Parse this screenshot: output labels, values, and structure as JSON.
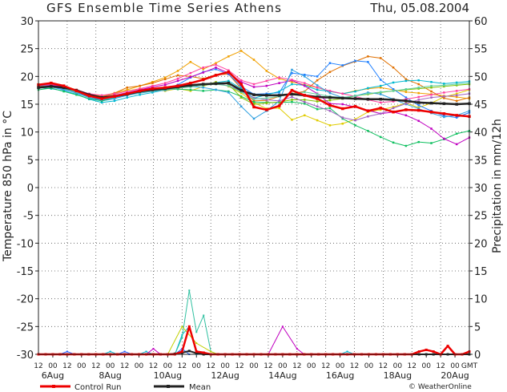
{
  "chart_data": {
    "type": "line",
    "title": "GFS Ensemble Time Series Athens",
    "date": "Thu, 05.08.2004",
    "ylabel": "Temperature 850 hPa in °C",
    "y2label": "Precipitation in mm/12h",
    "ylim": [
      -30,
      30
    ],
    "y2lim": [
      0,
      60
    ],
    "yticks": [
      30,
      25,
      20,
      15,
      10,
      5,
      0,
      -5,
      -10,
      -15,
      -20,
      -25,
      -30
    ],
    "y2ticks": [
      60,
      55,
      50,
      45,
      40,
      35,
      30,
      25,
      20,
      15,
      10,
      5,
      0
    ],
    "hour_labels": [
      "12",
      "00",
      "12",
      "00",
      "12",
      "00",
      "12",
      "00",
      "12",
      "00",
      "12",
      "00",
      "12",
      "00",
      "12",
      "00",
      "12",
      "00",
      "12",
      "00",
      "12",
      "00",
      "12",
      "00",
      "12",
      "00",
      "12",
      "00",
      "12",
      "00",
      "GMT"
    ],
    "date_labels": [
      "6Aug",
      "8Aug",
      "10Aug",
      "12Aug",
      "14Aug",
      "16Aug",
      "18Aug",
      "20Aug"
    ],
    "grid": true,
    "legend": [
      {
        "name": "Control Run",
        "color": "#ee0000"
      },
      {
        "name": "Mean",
        "color": "#222222"
      }
    ],
    "copyright": "© WeatherOnline",
    "x_steps": 30,
    "mean_temp": [
      18.0,
      18.2,
      18.0,
      17.5,
      16.7,
      16.2,
      16.4,
      16.8,
      17.3,
      17.6,
      17.8,
      18.1,
      18.4,
      18.6,
      18.7,
      18.8,
      17.5,
      16.7,
      16.6,
      16.6,
      16.8,
      16.6,
      16.3,
      16.2,
      16.1,
      16.0,
      15.9,
      15.9,
      15.8,
      15.6,
      15.3,
      15.2,
      15.1,
      15.0,
      15.1
    ],
    "control_temp": [
      18.5,
      18.8,
      18.3,
      17.4,
      16.5,
      16.0,
      16.4,
      16.9,
      17.4,
      17.8,
      18.0,
      18.3,
      18.8,
      19.4,
      20.2,
      20.8,
      18.6,
      14.5,
      14.0,
      14.7,
      17.5,
      16.6,
      16.0,
      14.8,
      14.2,
      14.6,
      13.8,
      14.3,
      13.6,
      14.0,
      13.9,
      13.6,
      13.3,
      13.0,
      12.8
    ],
    "members_temp": [
      {
        "color": "#f0a000",
        "values": [
          18.4,
          18.6,
          18.3,
          17.6,
          16.8,
          16.5,
          17.0,
          17.6,
          18.3,
          19.0,
          19.8,
          21.0,
          22.6,
          21.3,
          22.4,
          23.6,
          24.6,
          23.0,
          21.0,
          19.6,
          19.0,
          18.5,
          18.0,
          17.3,
          16.9,
          17.4,
          17.8,
          18.0,
          17.6,
          17.2,
          17.0,
          16.8,
          16.5,
          16.3,
          16.0
        ]
      },
      {
        "color": "#e0cc00",
        "values": [
          18.6,
          18.2,
          18.1,
          17.2,
          16.5,
          16.2,
          16.8,
          17.4,
          17.8,
          17.6,
          17.4,
          17.8,
          17.4,
          18.2,
          19.0,
          18.2,
          17.0,
          15.3,
          14.2,
          14.3,
          12.2,
          13.0,
          12.1,
          11.2,
          11.5,
          12.3,
          13.6,
          14.0,
          14.5,
          15.2,
          14.4,
          15.2,
          16.3,
          16.9,
          17.6
        ]
      },
      {
        "color": "#e07000",
        "values": [
          18.4,
          18.1,
          17.8,
          17.0,
          16.4,
          16.3,
          17.0,
          18.0,
          18.3,
          18.8,
          19.5,
          20.2,
          20.0,
          19.6,
          20.3,
          20.4,
          17.8,
          15.6,
          15.7,
          16.4,
          16.9,
          17.3,
          19.3,
          20.8,
          21.9,
          22.7,
          23.6,
          23.3,
          21.6,
          19.5,
          18.6,
          17.3,
          16.1,
          15.6,
          16.2
        ]
      },
      {
        "color": "#2080ff",
        "values": [
          17.9,
          18.1,
          17.6,
          17.1,
          16.2,
          15.6,
          16.0,
          16.6,
          17.2,
          17.4,
          17.8,
          18.5,
          19.8,
          20.8,
          21.3,
          20.4,
          18.2,
          16.8,
          16.9,
          17.1,
          20.6,
          20.3,
          20.0,
          22.4,
          22.0,
          22.8,
          22.6,
          19.4,
          17.7,
          16.2,
          14.8,
          13.8,
          12.9,
          12.6,
          13.5
        ]
      },
      {
        "color": "#00b8d0",
        "values": [
          18.0,
          17.8,
          17.4,
          16.8,
          15.9,
          15.3,
          15.6,
          16.2,
          16.7,
          17.1,
          17.6,
          17.9,
          18.3,
          18.6,
          18.9,
          19.2,
          17.8,
          16.1,
          16.7,
          17.3,
          18.6,
          18.4,
          17.6,
          17.3,
          16.9,
          17.3,
          17.9,
          18.3,
          18.9,
          19.2,
          19.3,
          19.0,
          18.7,
          18.9,
          19.1
        ]
      },
      {
        "color": "#10c060",
        "values": [
          17.6,
          17.9,
          17.3,
          16.7,
          16.0,
          15.6,
          16.1,
          16.8,
          17.2,
          17.5,
          17.7,
          17.7,
          17.6,
          17.4,
          17.6,
          17.3,
          16.4,
          15.4,
          15.3,
          15.3,
          15.4,
          15.1,
          14.1,
          14.3,
          12.4,
          11.2,
          10.2,
          9.1,
          8.1,
          7.5,
          8.2,
          8.0,
          8.7,
          9.7,
          10.2
        ]
      },
      {
        "color": "#80c000",
        "values": [
          18.2,
          18.4,
          18.0,
          17.4,
          16.6,
          16.1,
          16.4,
          17.0,
          17.5,
          17.8,
          18.0,
          18.2,
          18.4,
          18.6,
          18.9,
          18.6,
          16.2,
          15.0,
          15.2,
          15.4,
          15.8,
          15.8,
          15.5,
          15.7,
          16.0,
          16.5,
          16.8,
          17.1,
          17.4,
          17.6,
          17.8,
          18.0,
          18.2,
          18.4,
          18.6
        ]
      },
      {
        "color": "#c000c0",
        "values": [
          18.3,
          18.5,
          18.1,
          17.4,
          16.7,
          16.3,
          16.6,
          17.1,
          17.6,
          18.1,
          18.5,
          19.2,
          19.9,
          20.7,
          21.6,
          20.6,
          19.0,
          18.1,
          18.3,
          18.8,
          19.3,
          18.3,
          16.9,
          15.1,
          15.0,
          14.5,
          13.9,
          13.3,
          13.6,
          13.0,
          12.0,
          10.6,
          8.8,
          7.8,
          9.0
        ]
      },
      {
        "color": "#ff40a0",
        "values": [
          18.3,
          18.6,
          18.2,
          17.6,
          16.9,
          16.6,
          16.9,
          17.3,
          17.8,
          18.3,
          18.8,
          19.6,
          20.6,
          21.6,
          22.1,
          21.1,
          19.3,
          18.6,
          19.2,
          19.8,
          19.4,
          18.8,
          18.0,
          17.4,
          16.9,
          16.4,
          15.8,
          15.3,
          15.5,
          15.9,
          16.3,
          16.7,
          17.1,
          17.4,
          17.7
        ]
      },
      {
        "color": "#30a0e0",
        "values": [
          17.9,
          18.1,
          17.7,
          17.0,
          16.2,
          15.8,
          16.1,
          16.6,
          17.0,
          17.3,
          17.5,
          17.9,
          18.2,
          18.0,
          17.6,
          17.1,
          14.6,
          12.4,
          13.8,
          15.6,
          21.2,
          20.0,
          18.4,
          17.0,
          16.2,
          16.5,
          17.1,
          16.8,
          15.9,
          15.0,
          14.2,
          13.4,
          12.7,
          13.0,
          13.8
        ]
      },
      {
        "color": "#a060c0",
        "values": [
          18.4,
          18.3,
          17.9,
          17.3,
          16.5,
          16.1,
          16.5,
          17.0,
          17.4,
          17.6,
          17.8,
          18.0,
          18.3,
          18.5,
          18.8,
          18.3,
          17.4,
          16.1,
          15.8,
          15.6,
          16.3,
          15.4,
          14.6,
          13.8,
          12.6,
          12.1,
          12.8,
          13.3,
          14.3,
          15.1,
          15.8,
          16.2,
          16.4,
          16.6,
          16.9
        ]
      },
      {
        "color": "#60d0a0",
        "values": [
          18.1,
          18.3,
          17.9,
          17.2,
          16.4,
          15.9,
          16.2,
          16.7,
          17.1,
          17.4,
          17.6,
          17.9,
          18.1,
          18.4,
          18.6,
          18.3,
          17.2,
          15.9,
          16.1,
          16.4,
          16.8,
          17.2,
          16.8,
          16.4,
          16.2,
          16.5,
          16.9,
          17.2,
          17.4,
          17.7,
          18.0,
          18.3,
          18.4,
          18.6,
          18.8
        ]
      }
    ],
    "precip_control": [
      0,
      0,
      0,
      0,
      0,
      0,
      0,
      0,
      0,
      0,
      0,
      0,
      0,
      0,
      0,
      0,
      0,
      0,
      0,
      0,
      0.5,
      5.0,
      0.5,
      0.3,
      0,
      0,
      0,
      0,
      0,
      0,
      0,
      0,
      0,
      0,
      0,
      0,
      0,
      0,
      0,
      0,
      0,
      0,
      0,
      0,
      0,
      0,
      0,
      0,
      0,
      0,
      0,
      0,
      0,
      0.5,
      0.8,
      0.5,
      0,
      1.5,
      0,
      0,
      0.5
    ],
    "precip_mean": [
      0,
      0,
      0,
      0,
      0,
      0,
      0,
      0,
      0,
      0,
      0,
      0,
      0,
      0,
      0,
      0,
      0,
      0,
      0,
      0.1,
      0.3,
      0.6,
      0.2,
      0,
      0,
      0,
      0,
      0,
      0,
      0,
      0,
      0,
      0,
      0,
      0,
      0,
      0,
      0,
      0,
      0,
      0,
      0,
      0,
      0,
      0,
      0,
      0,
      0,
      0,
      0,
      0,
      0,
      0,
      0,
      0,
      0,
      0,
      0,
      0,
      0,
      0
    ],
    "precip_members": [
      {
        "color": "#00b8d0",
        "values": [
          0,
          0,
          0,
          0,
          0,
          0,
          0,
          0,
          0,
          0,
          0,
          0,
          0,
          0,
          0,
          0.5,
          0,
          0,
          0,
          0,
          3.5,
          5.0,
          0,
          0,
          0,
          0,
          0,
          0,
          0,
          0,
          0,
          0,
          0,
          0,
          0,
          0,
          0,
          0,
          0,
          0,
          0,
          0,
          0,
          0,
          0,
          0,
          0,
          0,
          0,
          0,
          0,
          0,
          0,
          0,
          0,
          0,
          0,
          0,
          0,
          0,
          0
        ]
      },
      {
        "color": "#30c0a0",
        "values": [
          0,
          0,
          0,
          0,
          0,
          0,
          0,
          0,
          0,
          0,
          0,
          0,
          0,
          0,
          0,
          0,
          0,
          0,
          0,
          0,
          3.0,
          11.5,
          4.0,
          7.0,
          0.5,
          0,
          0,
          0,
          0,
          0,
          0,
          0,
          0,
          0,
          0,
          0,
          0,
          0,
          0,
          0,
          0,
          0,
          0,
          0,
          0,
          0,
          0,
          0,
          0,
          0,
          0,
          0,
          0,
          0,
          0,
          0,
          0,
          0,
          0,
          0,
          0
        ]
      },
      {
        "color": "#c0d000",
        "values": [
          0,
          0,
          0,
          0,
          0,
          0,
          0,
          0,
          0,
          0,
          0,
          0,
          0,
          0,
          0,
          0,
          0,
          0,
          0,
          0,
          0,
          0,
          0,
          0,
          0,
          0,
          0,
          0,
          0,
          0,
          0,
          0,
          0,
          0,
          0,
          0,
          0,
          0,
          0,
          0,
          0,
          0,
          0,
          0,
          0,
          0,
          0,
          0,
          0,
          0,
          0,
          0,
          0,
          0,
          0,
          0,
          0,
          0,
          0,
          0,
          0
        ]
      },
      {
        "color": "#2060ff",
        "values": [
          0,
          0,
          0,
          0,
          0,
          0,
          0,
          0,
          0,
          0,
          0,
          0,
          0,
          0,
          0,
          0,
          0,
          0,
          0,
          0,
          0,
          0,
          0,
          0,
          0,
          0,
          0,
          0,
          0,
          0,
          0,
          0,
          0,
          0,
          0,
          0,
          0,
          0,
          0,
          0,
          0,
          0,
          0,
          0,
          0,
          0,
          0,
          0,
          0,
          0,
          0,
          0,
          0,
          0,
          0,
          0,
          0,
          0,
          0,
          0,
          0
        ]
      },
      {
        "color": "#c000c0",
        "values": [
          0,
          0,
          0,
          0,
          0,
          0,
          0,
          0,
          0,
          0,
          0,
          0,
          0,
          0,
          0,
          0,
          0,
          0,
          0,
          0,
          0,
          0,
          0,
          0,
          0,
          0,
          0,
          0,
          0,
          0,
          0,
          0,
          0,
          0,
          0,
          0,
          0,
          0,
          0,
          0,
          0,
          0,
          0,
          0,
          0,
          0,
          0,
          0,
          0,
          0,
          0,
          0,
          0,
          0,
          0,
          0,
          0,
          0,
          0,
          0,
          0
        ]
      }
    ],
    "precip_members_early": [
      {
        "color": "#c0d000",
        "points": [
          [
            9.0,
            0
          ],
          [
            10.0,
            5.0
          ],
          [
            11.0,
            2.0
          ],
          [
            12.0,
            0.5
          ],
          [
            12.5,
            0
          ]
        ]
      },
      {
        "color": "#2060ff",
        "points": [
          [
            1.5,
            0
          ],
          [
            2.0,
            0.5
          ],
          [
            2.5,
            0
          ],
          [
            5.5,
            0
          ],
          [
            6.0,
            0.5
          ],
          [
            6.5,
            0
          ],
          [
            9.5,
            0
          ],
          [
            10.0,
            1.0
          ],
          [
            10.5,
            0
          ]
        ]
      },
      {
        "color": "#c000c0",
        "points": [
          [
            7.5,
            0
          ],
          [
            8.0,
            1.0
          ],
          [
            8.5,
            0
          ],
          [
            16.0,
            0
          ],
          [
            17.0,
            5.0
          ],
          [
            18.0,
            1.0
          ],
          [
            18.5,
            0
          ]
        ]
      },
      {
        "color": "#00b8d0",
        "points": [
          [
            4.5,
            0
          ],
          [
            5.0,
            0.5
          ],
          [
            5.5,
            0
          ],
          [
            21.0,
            0
          ],
          [
            21.5,
            0.5
          ],
          [
            22.0,
            0
          ]
        ]
      }
    ]
  }
}
